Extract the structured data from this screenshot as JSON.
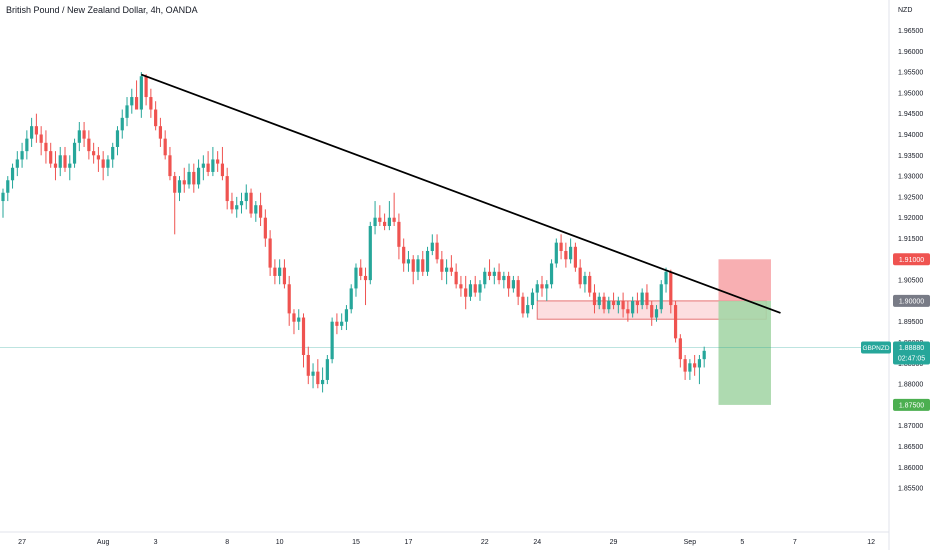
{
  "header": {
    "title": "British Pound / New Zealand Dollar, 4h, OANDA"
  },
  "price_axis": {
    "unit": "NZD"
  },
  "chart_data": {
    "type": "candlestick",
    "title": "British Pound / New Zealand Dollar, 4h, OANDA",
    "symbol": "GBPNZD",
    "ylim": [
      1.8495,
      1.968
    ],
    "y_ticks": [
      "1.96500",
      "1.96000",
      "1.95500",
      "1.95000",
      "1.94500",
      "1.94000",
      "1.93500",
      "1.93000",
      "1.92500",
      "1.92000",
      "1.91500",
      "1.91000",
      "1.90500",
      "1.90000",
      "1.89500",
      "1.89000",
      "1.88500",
      "1.88000",
      "1.87500",
      "1.87000",
      "1.86500",
      "1.86000",
      "1.85500"
    ],
    "x_ticks": [
      "27",
      "Aug",
      "3",
      "8",
      "10",
      "15",
      "17",
      "22",
      "24",
      "29",
      "Sep",
      "5",
      "7",
      "12"
    ],
    "grid": false,
    "colors": {
      "up": "#26a69a",
      "down": "#ef5350",
      "trendline": "#000000",
      "stop_zone": "#f7a1a5",
      "target_zone": "#a5d6a7",
      "support_zone": "#fbd3d6",
      "support_border": "#e57373",
      "current_price": "#26a69a"
    },
    "price_labels": {
      "stop": {
        "text": "1.91000",
        "value": 1.91,
        "color": "#ef5350"
      },
      "entry": {
        "text": "1.90000",
        "value": 1.9,
        "color": "#787b86"
      },
      "current": {
        "symbol": "GBPNZD",
        "text": "1.88880",
        "countdown": "02:47:05",
        "value": 1.8888,
        "color": "#26a69a"
      },
      "target": {
        "text": "1.87500",
        "value": 1.875,
        "color": "#4caf50"
      }
    },
    "trendline": {
      "start": [
        29,
        1.9544
      ],
      "end": [
        163,
        1.8971
      ]
    },
    "support_zone": {
      "x_start": 112,
      "x_end": 160,
      "top": 1.9,
      "bottom": 1.8956
    },
    "position": {
      "x_start": 150,
      "x_end": 161,
      "entry": 1.9,
      "stop": 1.91,
      "target": 1.875
    },
    "candles": [
      {
        "o": 1.924,
        "h": 1.927,
        "l": 1.92,
        "c": 1.926
      },
      {
        "o": 1.926,
        "h": 1.93,
        "l": 1.924,
        "c": 1.929
      },
      {
        "o": 1.929,
        "h": 1.933,
        "l": 1.927,
        "c": 1.932
      },
      {
        "o": 1.932,
        "h": 1.936,
        "l": 1.93,
        "c": 1.934
      },
      {
        "o": 1.934,
        "h": 1.938,
        "l": 1.932,
        "c": 1.936
      },
      {
        "o": 1.936,
        "h": 1.941,
        "l": 1.934,
        "c": 1.939
      },
      {
        "o": 1.939,
        "h": 1.944,
        "l": 1.937,
        "c": 1.942
      },
      {
        "o": 1.942,
        "h": 1.945,
        "l": 1.938,
        "c": 1.94
      },
      {
        "o": 1.94,
        "h": 1.942,
        "l": 1.935,
        "c": 1.938
      },
      {
        "o": 1.938,
        "h": 1.941,
        "l": 1.933,
        "c": 1.936
      },
      {
        "o": 1.936,
        "h": 1.938,
        "l": 1.932,
        "c": 1.933
      },
      {
        "o": 1.933,
        "h": 1.936,
        "l": 1.929,
        "c": 1.932
      },
      {
        "o": 1.932,
        "h": 1.937,
        "l": 1.93,
        "c": 1.935
      },
      {
        "o": 1.935,
        "h": 1.937,
        "l": 1.931,
        "c": 1.932
      },
      {
        "o": 1.932,
        "h": 1.935,
        "l": 1.929,
        "c": 1.933
      },
      {
        "o": 1.933,
        "h": 1.939,
        "l": 1.932,
        "c": 1.938
      },
      {
        "o": 1.938,
        "h": 1.943,
        "l": 1.936,
        "c": 1.941
      },
      {
        "o": 1.941,
        "h": 1.943,
        "l": 1.937,
        "c": 1.939
      },
      {
        "o": 1.939,
        "h": 1.941,
        "l": 1.934,
        "c": 1.936
      },
      {
        "o": 1.936,
        "h": 1.938,
        "l": 1.933,
        "c": 1.935
      },
      {
        "o": 1.935,
        "h": 1.937,
        "l": 1.931,
        "c": 1.934
      },
      {
        "o": 1.934,
        "h": 1.936,
        "l": 1.929,
        "c": 1.932
      },
      {
        "o": 1.932,
        "h": 1.935,
        "l": 1.93,
        "c": 1.934
      },
      {
        "o": 1.934,
        "h": 1.938,
        "l": 1.932,
        "c": 1.937
      },
      {
        "o": 1.937,
        "h": 1.942,
        "l": 1.935,
        "c": 1.941
      },
      {
        "o": 1.941,
        "h": 1.946,
        "l": 1.939,
        "c": 1.944
      },
      {
        "o": 1.944,
        "h": 1.949,
        "l": 1.942,
        "c": 1.947
      },
      {
        "o": 1.947,
        "h": 1.951,
        "l": 1.945,
        "c": 1.949
      },
      {
        "o": 1.949,
        "h": 1.953,
        "l": 1.947,
        "c": 1.946
      },
      {
        "o": 1.946,
        "h": 1.955,
        "l": 1.944,
        "c": 1.954
      },
      {
        "o": 1.954,
        "h": 1.9545,
        "l": 1.947,
        "c": 1.949
      },
      {
        "o": 1.949,
        "h": 1.951,
        "l": 1.944,
        "c": 1.946
      },
      {
        "o": 1.946,
        "h": 1.948,
        "l": 1.941,
        "c": 1.942
      },
      {
        "o": 1.942,
        "h": 1.944,
        "l": 1.937,
        "c": 1.939
      },
      {
        "o": 1.939,
        "h": 1.941,
        "l": 1.934,
        "c": 1.935
      },
      {
        "o": 1.935,
        "h": 1.937,
        "l": 1.929,
        "c": 1.93
      },
      {
        "o": 1.93,
        "h": 1.931,
        "l": 1.916,
        "c": 1.926
      },
      {
        "o": 1.926,
        "h": 1.93,
        "l": 1.924,
        "c": 1.929
      },
      {
        "o": 1.929,
        "h": 1.932,
        "l": 1.926,
        "c": 1.928
      },
      {
        "o": 1.928,
        "h": 1.933,
        "l": 1.927,
        "c": 1.931
      },
      {
        "o": 1.931,
        "h": 1.933,
        "l": 1.926,
        "c": 1.928
      },
      {
        "o": 1.928,
        "h": 1.934,
        "l": 1.927,
        "c": 1.932
      },
      {
        "o": 1.932,
        "h": 1.935,
        "l": 1.929,
        "c": 1.933
      },
      {
        "o": 1.933,
        "h": 1.936,
        "l": 1.93,
        "c": 1.931
      },
      {
        "o": 1.931,
        "h": 1.937,
        "l": 1.93,
        "c": 1.934
      },
      {
        "o": 1.934,
        "h": 1.936,
        "l": 1.931,
        "c": 1.933
      },
      {
        "o": 1.933,
        "h": 1.937,
        "l": 1.929,
        "c": 1.93
      },
      {
        "o": 1.93,
        "h": 1.932,
        "l": 1.922,
        "c": 1.924
      },
      {
        "o": 1.924,
        "h": 1.926,
        "l": 1.921,
        "c": 1.922
      },
      {
        "o": 1.922,
        "h": 1.925,
        "l": 1.92,
        "c": 1.923
      },
      {
        "o": 1.923,
        "h": 1.926,
        "l": 1.921,
        "c": 1.924
      },
      {
        "o": 1.924,
        "h": 1.928,
        "l": 1.922,
        "c": 1.926
      },
      {
        "o": 1.926,
        "h": 1.927,
        "l": 1.92,
        "c": 1.921
      },
      {
        "o": 1.921,
        "h": 1.924,
        "l": 1.919,
        "c": 1.923
      },
      {
        "o": 1.923,
        "h": 1.926,
        "l": 1.918,
        "c": 1.92
      },
      {
        "o": 1.92,
        "h": 1.922,
        "l": 1.913,
        "c": 1.915
      },
      {
        "o": 1.915,
        "h": 1.917,
        "l": 1.906,
        "c": 1.908
      },
      {
        "o": 1.908,
        "h": 1.91,
        "l": 1.904,
        "c": 1.906
      },
      {
        "o": 1.906,
        "h": 1.91,
        "l": 1.904,
        "c": 1.908
      },
      {
        "o": 1.908,
        "h": 1.91,
        "l": 1.903,
        "c": 1.904
      },
      {
        "o": 1.904,
        "h": 1.906,
        "l": 1.894,
        "c": 1.897
      },
      {
        "o": 1.897,
        "h": 1.898,
        "l": 1.892,
        "c": 1.895
      },
      {
        "o": 1.895,
        "h": 1.898,
        "l": 1.893,
        "c": 1.896
      },
      {
        "o": 1.896,
        "h": 1.897,
        "l": 1.884,
        "c": 1.887
      },
      {
        "o": 1.887,
        "h": 1.889,
        "l": 1.88,
        "c": 1.882
      },
      {
        "o": 1.882,
        "h": 1.885,
        "l": 1.879,
        "c": 1.883
      },
      {
        "o": 1.883,
        "h": 1.886,
        "l": 1.879,
        "c": 1.88
      },
      {
        "o": 1.88,
        "h": 1.884,
        "l": 1.878,
        "c": 1.881
      },
      {
        "o": 1.881,
        "h": 1.887,
        "l": 1.88,
        "c": 1.886
      },
      {
        "o": 1.886,
        "h": 1.896,
        "l": 1.885,
        "c": 1.895
      },
      {
        "o": 1.895,
        "h": 1.897,
        "l": 1.892,
        "c": 1.894
      },
      {
        "o": 1.894,
        "h": 1.897,
        "l": 1.893,
        "c": 1.895
      },
      {
        "o": 1.895,
        "h": 1.899,
        "l": 1.893,
        "c": 1.898
      },
      {
        "o": 1.898,
        "h": 1.904,
        "l": 1.897,
        "c": 1.903
      },
      {
        "o": 1.903,
        "h": 1.909,
        "l": 1.901,
        "c": 1.908
      },
      {
        "o": 1.908,
        "h": 1.91,
        "l": 1.905,
        "c": 1.906
      },
      {
        "o": 1.906,
        "h": 1.908,
        "l": 1.899,
        "c": 1.905
      },
      {
        "o": 1.905,
        "h": 1.919,
        "l": 1.904,
        "c": 1.918
      },
      {
        "o": 1.918,
        "h": 1.924,
        "l": 1.916,
        "c": 1.92
      },
      {
        "o": 1.92,
        "h": 1.923,
        "l": 1.918,
        "c": 1.919
      },
      {
        "o": 1.919,
        "h": 1.921,
        "l": 1.917,
        "c": 1.918
      },
      {
        "o": 1.918,
        "h": 1.924,
        "l": 1.917,
        "c": 1.92
      },
      {
        "o": 1.92,
        "h": 1.926,
        "l": 1.918,
        "c": 1.919
      },
      {
        "o": 1.919,
        "h": 1.921,
        "l": 1.91,
        "c": 1.913
      },
      {
        "o": 1.913,
        "h": 1.915,
        "l": 1.907,
        "c": 1.909
      },
      {
        "o": 1.909,
        "h": 1.912,
        "l": 1.907,
        "c": 1.91
      },
      {
        "o": 1.91,
        "h": 1.911,
        "l": 1.904,
        "c": 1.907
      },
      {
        "o": 1.907,
        "h": 1.911,
        "l": 1.905,
        "c": 1.91
      },
      {
        "o": 1.91,
        "h": 1.912,
        "l": 1.906,
        "c": 1.907
      },
      {
        "o": 1.907,
        "h": 1.913,
        "l": 1.906,
        "c": 1.912
      },
      {
        "o": 1.912,
        "h": 1.916,
        "l": 1.911,
        "c": 1.914
      },
      {
        "o": 1.914,
        "h": 1.916,
        "l": 1.909,
        "c": 1.91
      },
      {
        "o": 1.91,
        "h": 1.912,
        "l": 1.905,
        "c": 1.907
      },
      {
        "o": 1.907,
        "h": 1.91,
        "l": 1.904,
        "c": 1.908
      },
      {
        "o": 1.908,
        "h": 1.911,
        "l": 1.906,
        "c": 1.907
      },
      {
        "o": 1.907,
        "h": 1.909,
        "l": 1.903,
        "c": 1.904
      },
      {
        "o": 1.904,
        "h": 1.906,
        "l": 1.901,
        "c": 1.903
      },
      {
        "o": 1.903,
        "h": 1.906,
        "l": 1.898,
        "c": 1.901
      },
      {
        "o": 1.901,
        "h": 1.905,
        "l": 1.9,
        "c": 1.904
      },
      {
        "o": 1.904,
        "h": 1.906,
        "l": 1.901,
        "c": 1.902
      },
      {
        "o": 1.902,
        "h": 1.905,
        "l": 1.9,
        "c": 1.904
      },
      {
        "o": 1.904,
        "h": 1.908,
        "l": 1.903,
        "c": 1.907
      },
      {
        "o": 1.907,
        "h": 1.91,
        "l": 1.905,
        "c": 1.906
      },
      {
        "o": 1.906,
        "h": 1.908,
        "l": 1.904,
        "c": 1.907
      },
      {
        "o": 1.907,
        "h": 1.909,
        "l": 1.904,
        "c": 1.905
      },
      {
        "o": 1.905,
        "h": 1.907,
        "l": 1.903,
        "c": 1.906
      },
      {
        "o": 1.906,
        "h": 1.907,
        "l": 1.901,
        "c": 1.903
      },
      {
        "o": 1.903,
        "h": 1.906,
        "l": 1.902,
        "c": 1.905
      },
      {
        "o": 1.905,
        "h": 1.906,
        "l": 1.899,
        "c": 1.901
      },
      {
        "o": 1.901,
        "h": 1.902,
        "l": 1.896,
        "c": 1.897
      },
      {
        "o": 1.897,
        "h": 1.901,
        "l": 1.896,
        "c": 1.899
      },
      {
        "o": 1.899,
        "h": 1.903,
        "l": 1.898,
        "c": 1.902
      },
      {
        "o": 1.902,
        "h": 1.905,
        "l": 1.9,
        "c": 1.904
      },
      {
        "o": 1.904,
        "h": 1.906,
        "l": 1.901,
        "c": 1.903
      },
      {
        "o": 1.903,
        "h": 1.905,
        "l": 1.9,
        "c": 1.904
      },
      {
        "o": 1.904,
        "h": 1.91,
        "l": 1.903,
        "c": 1.909
      },
      {
        "o": 1.909,
        "h": 1.915,
        "l": 1.908,
        "c": 1.914
      },
      {
        "o": 1.914,
        "h": 1.916,
        "l": 1.91,
        "c": 1.912
      },
      {
        "o": 1.912,
        "h": 1.914,
        "l": 1.908,
        "c": 1.91
      },
      {
        "o": 1.91,
        "h": 1.915,
        "l": 1.909,
        "c": 1.913
      },
      {
        "o": 1.913,
        "h": 1.914,
        "l": 1.907,
        "c": 1.908
      },
      {
        "o": 1.908,
        "h": 1.91,
        "l": 1.903,
        "c": 1.904
      },
      {
        "o": 1.904,
        "h": 1.907,
        "l": 1.902,
        "c": 1.906
      },
      {
        "o": 1.906,
        "h": 1.907,
        "l": 1.901,
        "c": 1.902
      },
      {
        "o": 1.902,
        "h": 1.904,
        "l": 1.897,
        "c": 1.899
      },
      {
        "o": 1.899,
        "h": 1.902,
        "l": 1.898,
        "c": 1.901
      },
      {
        "o": 1.901,
        "h": 1.902,
        "l": 1.897,
        "c": 1.898
      },
      {
        "o": 1.898,
        "h": 1.901,
        "l": 1.897,
        "c": 1.9
      },
      {
        "o": 1.9,
        "h": 1.902,
        "l": 1.898,
        "c": 1.899
      },
      {
        "o": 1.899,
        "h": 1.901,
        "l": 1.897,
        "c": 1.9
      },
      {
        "o": 1.9,
        "h": 1.902,
        "l": 1.896,
        "c": 1.898
      },
      {
        "o": 1.898,
        "h": 1.9,
        "l": 1.895,
        "c": 1.897
      },
      {
        "o": 1.897,
        "h": 1.901,
        "l": 1.896,
        "c": 1.9
      },
      {
        "o": 1.9,
        "h": 1.902,
        "l": 1.897,
        "c": 1.899
      },
      {
        "o": 1.899,
        "h": 1.903,
        "l": 1.898,
        "c": 1.902
      },
      {
        "o": 1.902,
        "h": 1.904,
        "l": 1.898,
        "c": 1.899
      },
      {
        "o": 1.899,
        "h": 1.9,
        "l": 1.894,
        "c": 1.896
      },
      {
        "o": 1.896,
        "h": 1.899,
        "l": 1.895,
        "c": 1.898
      },
      {
        "o": 1.898,
        "h": 1.905,
        "l": 1.897,
        "c": 1.904
      },
      {
        "o": 1.904,
        "h": 1.908,
        "l": 1.902,
        "c": 1.907
      },
      {
        "o": 1.907,
        "h": 1.9075,
        "l": 1.897,
        "c": 1.899
      },
      {
        "o": 1.899,
        "h": 1.9,
        "l": 1.89,
        "c": 1.891
      },
      {
        "o": 1.891,
        "h": 1.892,
        "l": 1.884,
        "c": 1.886
      },
      {
        "o": 1.886,
        "h": 1.887,
        "l": 1.881,
        "c": 1.883
      },
      {
        "o": 1.883,
        "h": 1.886,
        "l": 1.881,
        "c": 1.885
      },
      {
        "o": 1.885,
        "h": 1.887,
        "l": 1.882,
        "c": 1.884
      },
      {
        "o": 1.884,
        "h": 1.887,
        "l": 1.88,
        "c": 1.886
      },
      {
        "o": 1.886,
        "h": 1.889,
        "l": 1.884,
        "c": 1.888
      }
    ]
  }
}
